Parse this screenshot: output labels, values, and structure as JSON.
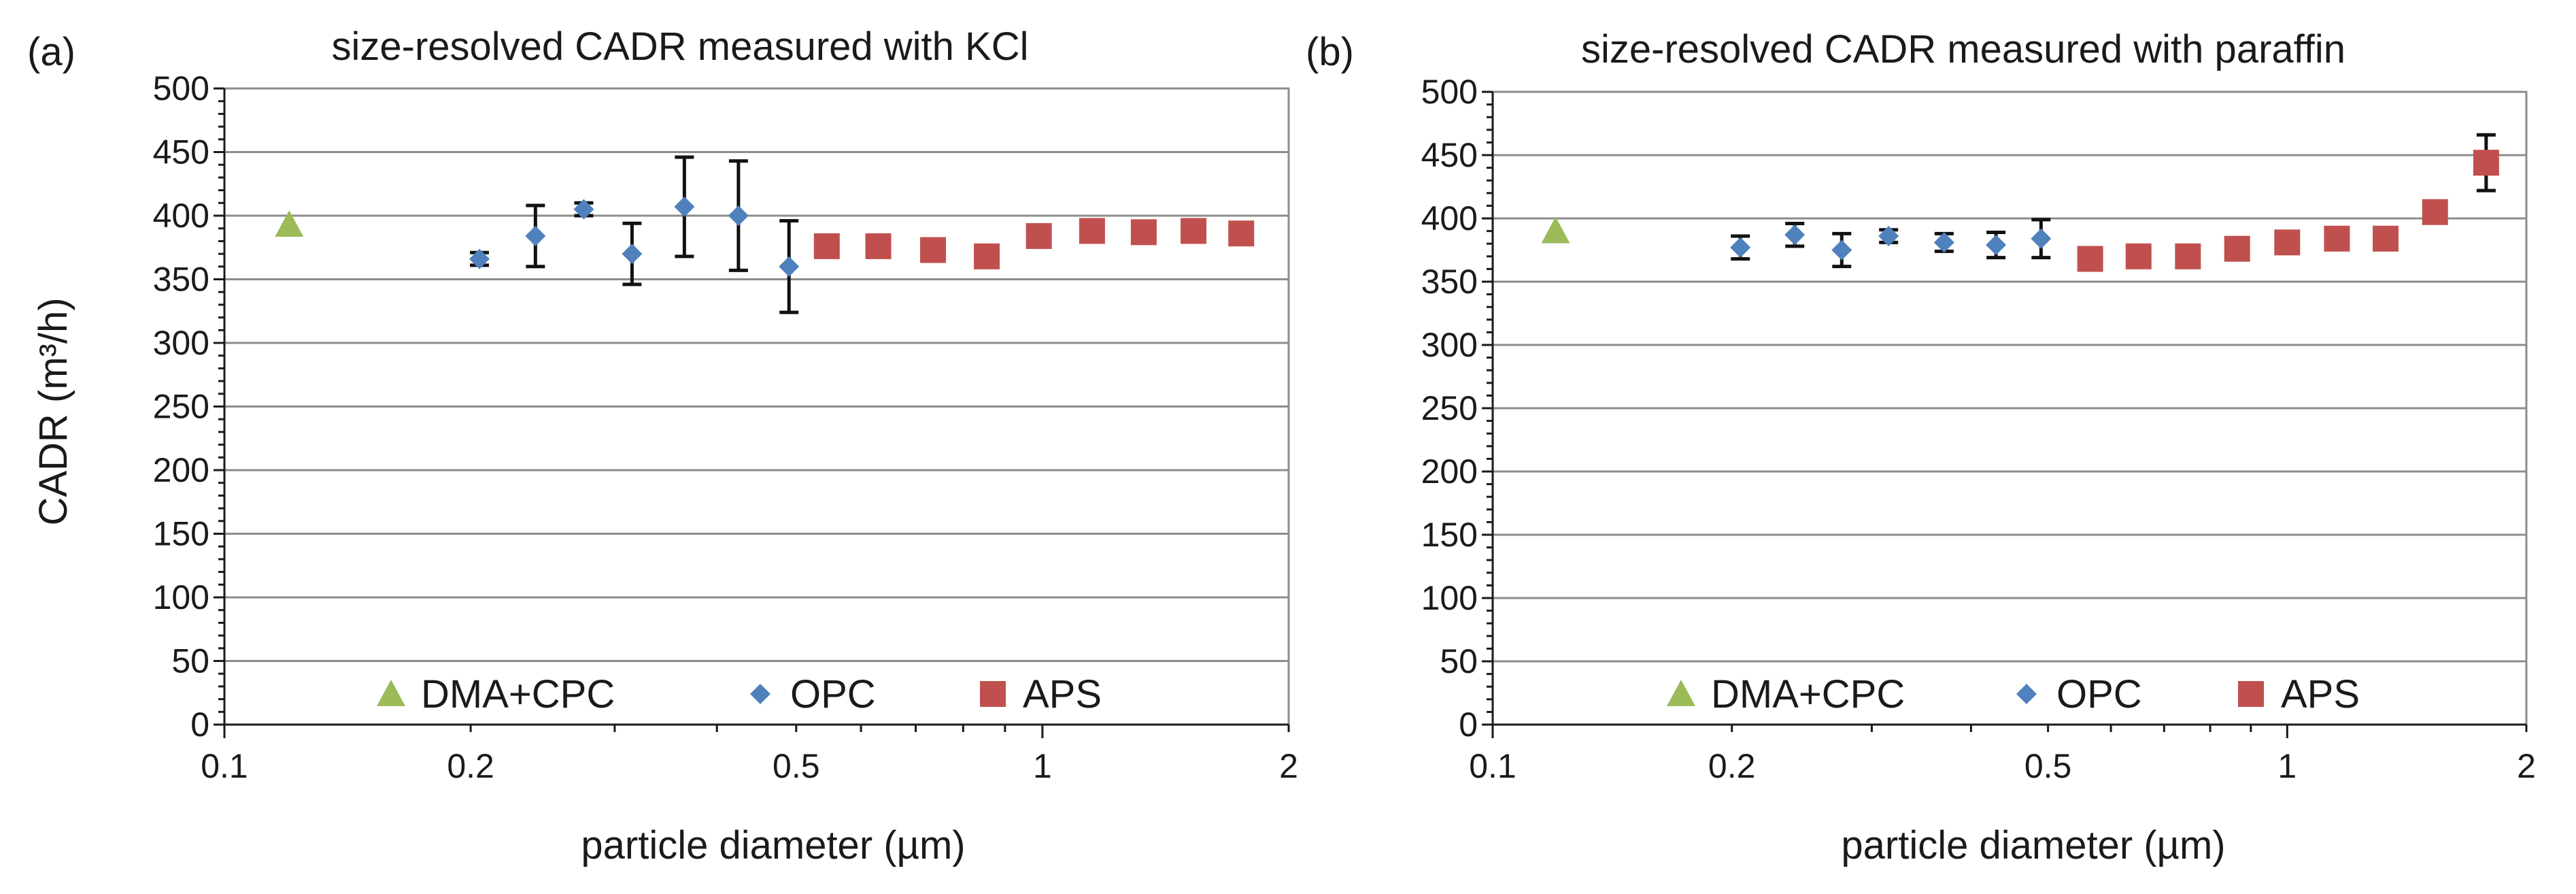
{
  "colors": {
    "dma": "#9bbb59",
    "opc": "#4f81bd",
    "aps": "#c0504d",
    "grid": "#8c8c8c"
  },
  "chart_data": [
    {
      "type": "scatter",
      "panel_label": "(a)",
      "title": "size-resolved CADR measured with KCl",
      "xlabel": "particle diameter (µm)",
      "ylabel": "CADR (m³/h)",
      "xscale": "log",
      "xlim": [
        0.1,
        2
      ],
      "ylim": [
        0,
        500
      ],
      "xticks": [
        0.1,
        0.2,
        0.5,
        1,
        2
      ],
      "xtick_labels": [
        "0.1",
        "0.2",
        "0.5",
        "1",
        "2"
      ],
      "yticks": [
        0,
        50,
        100,
        150,
        200,
        250,
        300,
        350,
        400,
        450,
        500
      ],
      "ytick_labels": [
        "0",
        "50",
        "100",
        "150",
        "200",
        "250",
        "300",
        "350",
        "400",
        "450",
        "500"
      ],
      "grid": true,
      "legend_position": "bottom",
      "series": [
        {
          "name": "DMA+CPC",
          "marker": "triangle",
          "color": "#9bbb59",
          "x": [
            0.12
          ],
          "y": [
            393
          ],
          "err": [
            0
          ]
        },
        {
          "name": "OPC",
          "marker": "diamond",
          "color": "#4f81bd",
          "x": [
            0.205,
            0.24,
            0.275,
            0.315,
            0.365,
            0.425,
            0.49
          ],
          "y": [
            366,
            384,
            405,
            370,
            407,
            400,
            360
          ],
          "err": [
            5,
            24,
            5,
            24,
            39,
            43,
            36
          ]
        },
        {
          "name": "APS",
          "marker": "square",
          "color": "#c0504d",
          "x": [
            0.545,
            0.63,
            0.735,
            0.855,
            0.99,
            1.15,
            1.33,
            1.53,
            1.75
          ],
          "y": [
            376,
            376,
            373,
            368,
            384,
            388,
            387,
            388,
            386
          ],
          "err": [
            0,
            0,
            0,
            0,
            0,
            0,
            0,
            0,
            0
          ]
        }
      ]
    },
    {
      "type": "scatter",
      "panel_label": "(b)",
      "title": "size-resolved CADR measured with paraffin",
      "xlabel": "particle diameter (µm)",
      "ylabel": "",
      "xscale": "log",
      "xlim": [
        0.1,
        2
      ],
      "ylim": [
        0,
        500
      ],
      "xticks": [
        0.1,
        0.2,
        0.5,
        1,
        2
      ],
      "xtick_labels": [
        "0.1",
        "0.2",
        "0.5",
        "1",
        "2"
      ],
      "yticks": [
        0,
        50,
        100,
        150,
        200,
        250,
        300,
        350,
        400,
        450,
        500
      ],
      "ytick_labels": [
        "0",
        "50",
        "100",
        "150",
        "200",
        "250",
        "300",
        "350",
        "400",
        "450",
        "500"
      ],
      "grid": true,
      "legend_position": "bottom",
      "series": [
        {
          "name": "DMA+CPC",
          "marker": "triangle",
          "color": "#9bbb59",
          "x": [
            0.12
          ],
          "y": [
            390
          ],
          "err": [
            0
          ]
        },
        {
          "name": "OPC",
          "marker": "diamond",
          "color": "#4f81bd",
          "x": [
            0.205,
            0.24,
            0.275,
            0.315,
            0.37,
            0.43,
            0.49
          ],
          "y": [
            377,
            387,
            375,
            386,
            381,
            379,
            384
          ],
          "err": [
            9,
            9,
            13,
            5,
            7,
            10,
            15
          ]
        },
        {
          "name": "APS",
          "marker": "square",
          "color": "#c0504d",
          "x": [
            0.565,
            0.65,
            0.75,
            0.865,
            1.0,
            1.155,
            1.33,
            1.535,
            1.78
          ],
          "y": [
            368,
            370,
            370,
            376,
            381,
            384,
            384,
            405,
            444
          ],
          "err": [
            0,
            0,
            0,
            0,
            0,
            0,
            0,
            0,
            22
          ]
        }
      ]
    }
  ]
}
